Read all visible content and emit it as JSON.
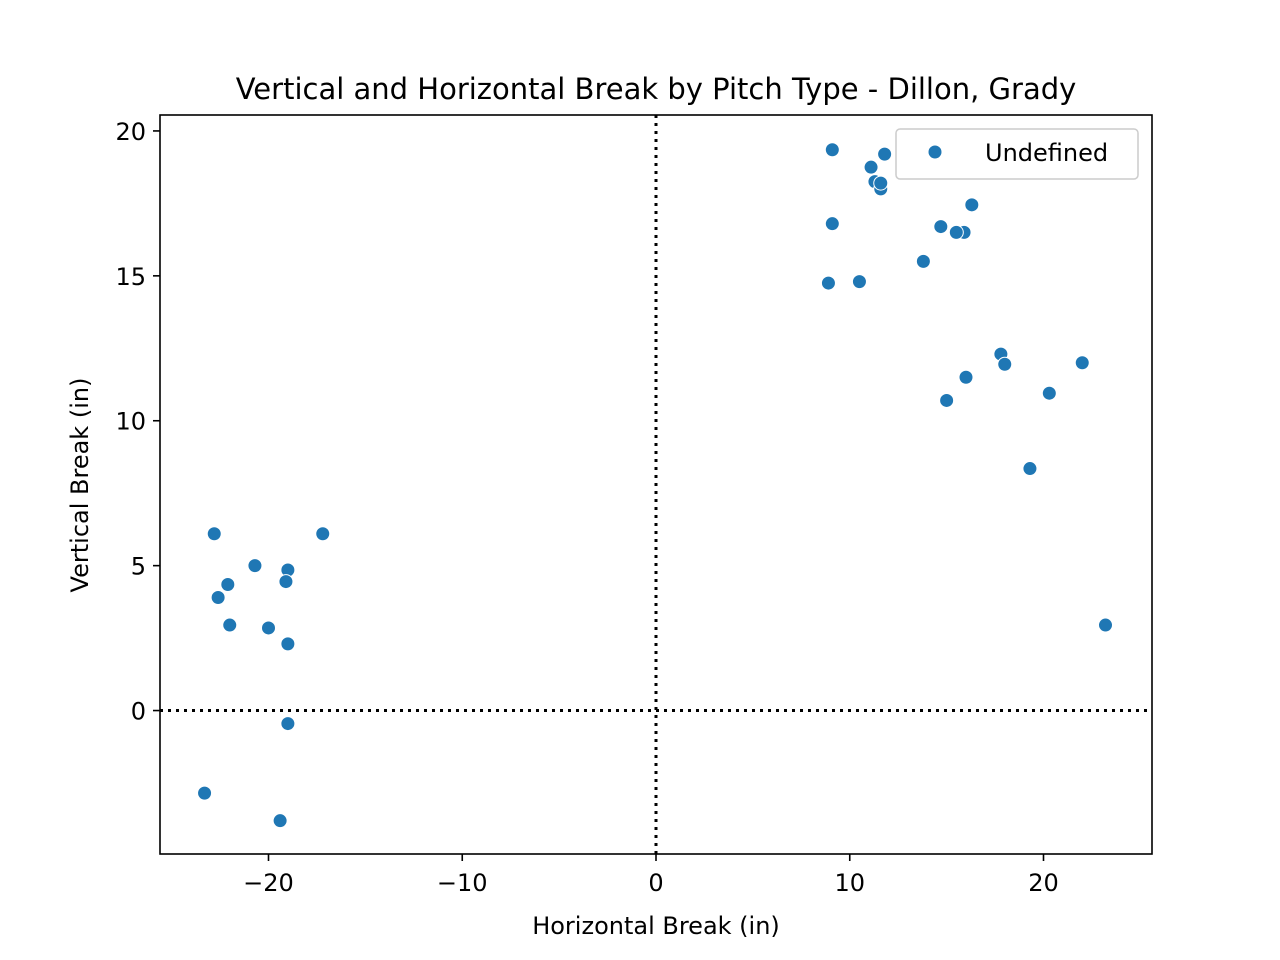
{
  "chart_data": {
    "type": "scatter",
    "title": "Vertical and Horizontal Break by Pitch Type - Dillon, Grady",
    "xlabel": "Horizontal Break (in)",
    "ylabel": "Vertical Break (in)",
    "xlim": [
      -25.6,
      25.6
    ],
    "ylim": [
      -4.95,
      20.55
    ],
    "xticks": [
      -20,
      -10,
      0,
      10,
      20
    ],
    "yticks": [
      0,
      5,
      10,
      15,
      20
    ],
    "xtick_labels": [
      "−20",
      "−10",
      "0",
      "10",
      "20"
    ],
    "ytick_labels": [
      "0",
      "5",
      "10",
      "15",
      "20"
    ],
    "reference_lines": {
      "x": 0,
      "y": 0,
      "style": "dotted",
      "color": "#000000"
    },
    "grid": false,
    "legend": {
      "placement": "top-right"
    },
    "series": [
      {
        "name": "Undefined",
        "color": "#1f77b4",
        "points": [
          [
            9.1,
            19.35
          ],
          [
            11.8,
            19.2
          ],
          [
            11.1,
            18.75
          ],
          [
            11.3,
            18.25
          ],
          [
            11.6,
            18.0
          ],
          [
            11.6,
            18.2
          ],
          [
            9.1,
            16.8
          ],
          [
            16.3,
            17.45
          ],
          [
            14.7,
            16.7
          ],
          [
            15.9,
            16.5
          ],
          [
            15.5,
            16.5
          ],
          [
            13.8,
            15.5
          ],
          [
            8.9,
            14.75
          ],
          [
            10.5,
            14.8
          ],
          [
            17.8,
            12.3
          ],
          [
            18.0,
            11.95
          ],
          [
            22.0,
            12.0
          ],
          [
            16.0,
            11.5
          ],
          [
            20.3,
            10.95
          ],
          [
            15.0,
            10.7
          ],
          [
            19.3,
            8.35
          ],
          [
            23.2,
            2.95
          ],
          [
            -22.8,
            6.1
          ],
          [
            -17.2,
            6.1
          ],
          [
            -20.7,
            5.0
          ],
          [
            -19.0,
            4.85
          ],
          [
            -19.1,
            4.45
          ],
          [
            -22.1,
            4.35
          ],
          [
            -22.6,
            3.9
          ],
          [
            -22.0,
            2.95
          ],
          [
            -20.0,
            2.85
          ],
          [
            -19.0,
            2.3
          ],
          [
            -19.0,
            -0.45
          ],
          [
            -23.3,
            -2.85
          ],
          [
            -19.4,
            -3.8
          ]
        ]
      }
    ]
  }
}
